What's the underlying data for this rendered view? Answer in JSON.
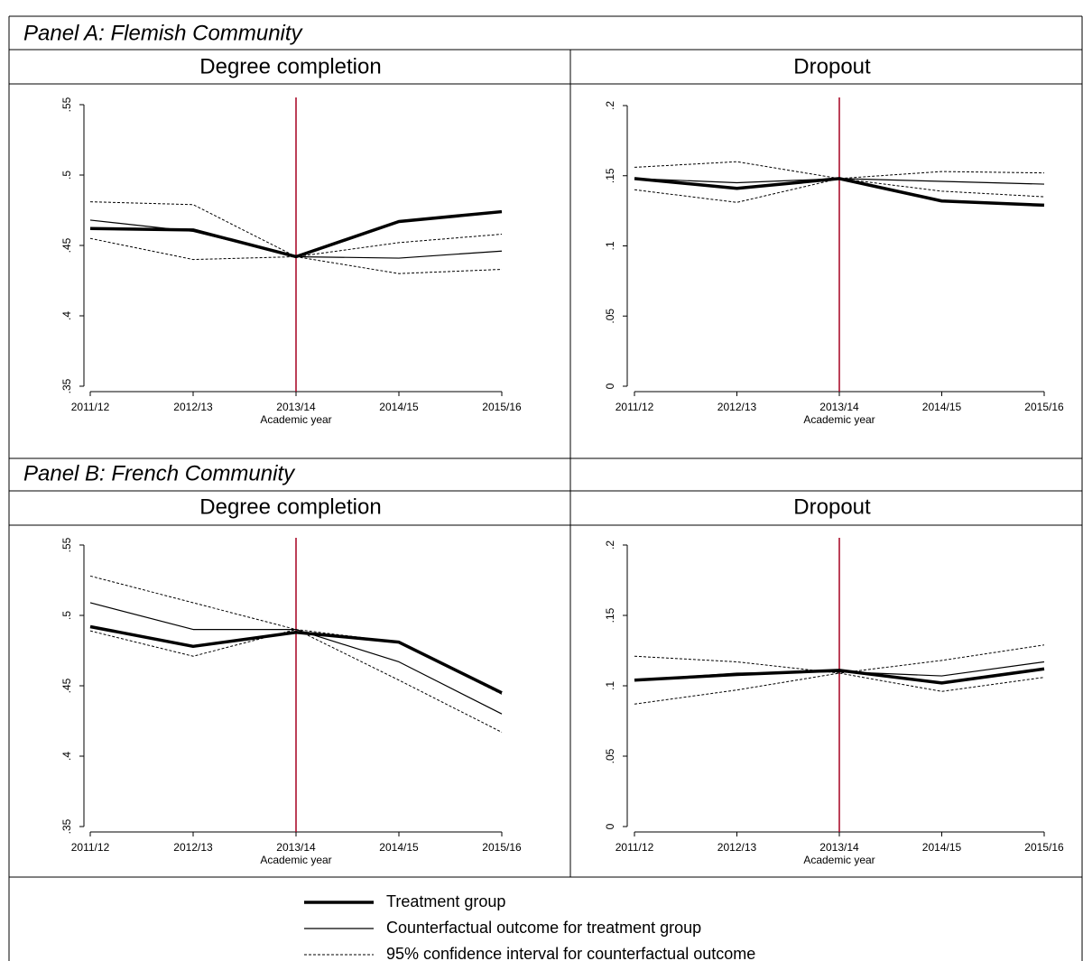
{
  "panels": [
    {
      "title": "Panel A: Flemish Community"
    },
    {
      "title": "Panel B: French Community"
    }
  ],
  "legend": [
    {
      "name": "Treatment group",
      "color": "#000000",
      "width": 3.5,
      "dash": "none"
    },
    {
      "name": "Counterfactual outcome for treatment group",
      "color": "#000000",
      "width": 1.2,
      "dash": "none"
    },
    {
      "name": "95% confidence interval for counterfactual outcome",
      "color": "#000000",
      "width": 1,
      "dash": "3 2"
    }
  ],
  "chart_data": [
    {
      "type": "line",
      "title": "Degree completion",
      "xlabel": "Academic year",
      "categories": [
        "2011/12",
        "2012/13",
        "2013/14",
        "2014/15",
        "2015/16"
      ],
      "ylim": [
        0.35,
        0.55
      ],
      "yticks": [
        {
          "value": 0.35,
          "label": ".35"
        },
        {
          "value": 0.4,
          "label": ".4"
        },
        {
          "value": 0.45,
          "label": ".45"
        },
        {
          "value": 0.5,
          "label": ".5"
        },
        {
          "value": 0.55,
          "label": ".55"
        }
      ],
      "vline_index": 2,
      "vline_color": "#a50021",
      "series": [
        {
          "values": [
            0.462,
            0.461,
            0.442,
            0.467,
            0.474
          ]
        },
        {
          "values": [
            0.468,
            0.46,
            0.442,
            0.441,
            0.446
          ]
        },
        {
          "values": [
            0.481,
            0.479,
            0.442,
            0.452,
            0.458
          ]
        },
        {
          "values": [
            0.455,
            0.44,
            0.442,
            0.43,
            0.433
          ]
        }
      ]
    },
    {
      "type": "line",
      "title": "Dropout",
      "xlabel": "Academic year",
      "categories": [
        "2011/12",
        "2012/13",
        "2013/14",
        "2014/15",
        "2015/16"
      ],
      "ylim": [
        0,
        0.2
      ],
      "yticks": [
        0,
        {
          "value": 0.05,
          "label": ".05"
        },
        {
          "value": 0.1,
          "label": ".1"
        },
        {
          "value": 0.15,
          "label": ".15"
        },
        {
          "value": 0.2,
          "label": ".2"
        }
      ],
      "vline_index": 2,
      "vline_color": "#a50021",
      "series": [
        {
          "values": [
            0.148,
            0.141,
            0.148,
            0.132,
            0.129
          ]
        },
        {
          "values": [
            0.148,
            0.145,
            0.148,
            0.146,
            0.144
          ]
        },
        {
          "values": [
            0.156,
            0.16,
            0.148,
            0.153,
            0.152
          ]
        },
        {
          "values": [
            0.14,
            0.131,
            0.148,
            0.139,
            0.135
          ]
        }
      ]
    },
    {
      "type": "line",
      "title": "Degree completion",
      "xlabel": "Academic year",
      "categories": [
        "2011/12",
        "2012/13",
        "2013/14",
        "2014/15",
        "2015/16"
      ],
      "ylim": [
        0.35,
        0.55
      ],
      "yticks": [
        {
          "value": 0.35,
          "label": ".35"
        },
        {
          "value": 0.4,
          "label": ".4"
        },
        {
          "value": 0.45,
          "label": ".45"
        },
        {
          "value": 0.5,
          "label": ".5"
        },
        {
          "value": 0.55,
          "label": ".55"
        }
      ],
      "vline_index": 2,
      "vline_color": "#a50021",
      "series": [
        {
          "values": [
            0.492,
            0.478,
            0.488,
            0.481,
            0.445
          ]
        },
        {
          "values": [
            0.509,
            0.49,
            0.49,
            0.467,
            0.43
          ]
        },
        {
          "values": [
            0.528,
            0.509,
            0.49,
            0.454,
            0.417
          ]
        },
        {
          "values": [
            0.489,
            0.471,
            0.49,
            0.481,
            0.444
          ]
        }
      ]
    },
    {
      "type": "line",
      "title": "Dropout",
      "xlabel": "Academic year",
      "categories": [
        "2011/12",
        "2012/13",
        "2013/14",
        "2014/15",
        "2015/16"
      ],
      "ylim": [
        0,
        0.2
      ],
      "yticks": [
        0,
        {
          "value": 0.05,
          "label": ".05"
        },
        {
          "value": 0.1,
          "label": ".1"
        },
        {
          "value": 0.15,
          "label": ".15"
        },
        {
          "value": 0.2,
          "label": ".2"
        }
      ],
      "vline_index": 2,
      "vline_color": "#a50021",
      "series": [
        {
          "values": [
            0.104,
            0.108,
            0.111,
            0.102,
            0.112
          ]
        },
        {
          "values": [
            0.104,
            0.109,
            0.11,
            0.107,
            0.117
          ]
        },
        {
          "values": [
            0.121,
            0.117,
            0.109,
            0.118,
            0.129
          ]
        },
        {
          "values": [
            0.087,
            0.097,
            0.109,
            0.096,
            0.106
          ]
        }
      ]
    }
  ]
}
